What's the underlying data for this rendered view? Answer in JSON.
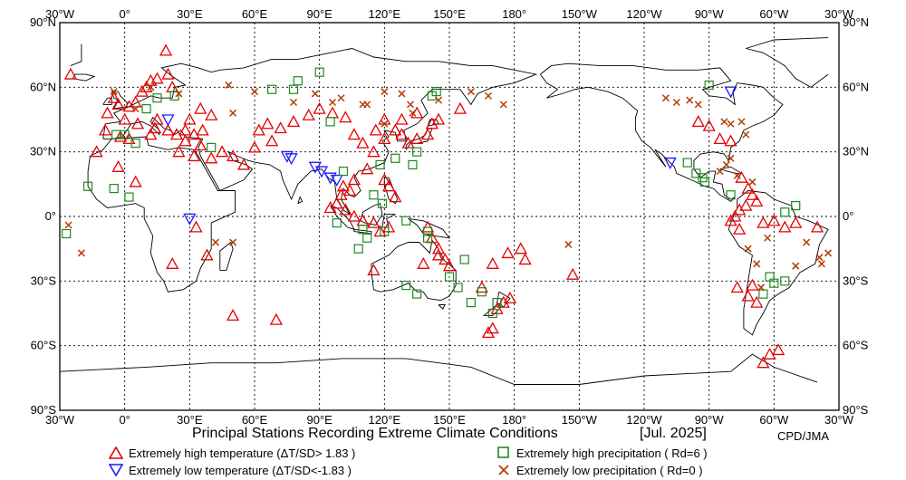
{
  "map": {
    "title": "Principal Stations Recording Extreme Climate Conditions",
    "period": "[Jul. 2025]",
    "credit": "CPD/JMA",
    "projection": "equirectangular, central meridian 150°E",
    "lon_labels": [
      "30°W",
      "0°",
      "30°E",
      "60°E",
      "90°E",
      "120°E",
      "150°E",
      "180°",
      "150°W",
      "120°W",
      "90°W",
      "60°W",
      "30°W"
    ],
    "lat_labels": [
      "90°N",
      "60°N",
      "30°N",
      "0°",
      "30°S",
      "60°S",
      "90°S"
    ],
    "colors": {
      "hot": "#e60000",
      "cold": "#1a1aff",
      "wet": "#1f8a1f",
      "dry": "#b33c00"
    }
  },
  "legend": [
    {
      "kind": "hot",
      "label": "Extremely high temperature (ΔT/SD> 1.83 )"
    },
    {
      "kind": "cold",
      "label": "Extremely low temperature  (ΔT/SD<-1.83 )"
    },
    {
      "kind": "wet",
      "label": "Extremely high precipitation ( Rd=6 )"
    },
    {
      "kind": "dry",
      "label": "Extremely low precipitation ( Rd=0 )"
    }
  ],
  "chart_data": {
    "type": "scatter",
    "x_unit": "longitude (degrees east)",
    "y_unit": "latitude (degrees north)",
    "series": [
      {
        "kind": "hot",
        "points": [
          [
            -13,
            30
          ],
          [
            -9,
            40
          ],
          [
            -8,
            48
          ],
          [
            -5,
            55
          ],
          [
            -3,
            52
          ],
          [
            0,
            45
          ],
          [
            2,
            51
          ],
          [
            5,
            53
          ],
          [
            8,
            58
          ],
          [
            10,
            60
          ],
          [
            12,
            63
          ],
          [
            15,
            64
          ],
          [
            20,
            66
          ],
          [
            22,
            60
          ],
          [
            19,
            77
          ],
          [
            15,
            45
          ],
          [
            14,
            41
          ],
          [
            20,
            40
          ],
          [
            24,
            38
          ],
          [
            28,
            40
          ],
          [
            30,
            45
          ],
          [
            35,
            50
          ],
          [
            40,
            47
          ],
          [
            28,
            35
          ],
          [
            32,
            28
          ],
          [
            40,
            27
          ],
          [
            45,
            30
          ],
          [
            25,
            30
          ],
          [
            12,
            38
          ],
          [
            6,
            43
          ],
          [
            -3,
            23
          ],
          [
            5,
            16
          ],
          [
            -2,
            37
          ],
          [
            2,
            36
          ],
          [
            35,
            33
          ],
          [
            50,
            28
          ],
          [
            55,
            24
          ],
          [
            62,
            40
          ],
          [
            66,
            43
          ],
          [
            72,
            41
          ],
          [
            78,
            44
          ],
          [
            85,
            47
          ],
          [
            90,
            50
          ],
          [
            96,
            48
          ],
          [
            102,
            46
          ],
          [
            106,
            38
          ],
          [
            110,
            34
          ],
          [
            115,
            30
          ],
          [
            120,
            36
          ],
          [
            125,
            40
          ],
          [
            128,
            38
          ],
          [
            131,
            34
          ],
          [
            135,
            36
          ],
          [
            140,
            38
          ],
          [
            142,
            43
          ],
          [
            145,
            45
          ],
          [
            135,
            48
          ],
          [
            128,
            45
          ],
          [
            120,
            45
          ],
          [
            116,
            40
          ],
          [
            112,
            22
          ],
          [
            106,
            17
          ],
          [
            104,
            12
          ],
          [
            101,
            14
          ],
          [
            100,
            10
          ],
          [
            98,
            6
          ],
          [
            95,
            4
          ],
          [
            102,
            3
          ],
          [
            106,
            0
          ],
          [
            110,
            -2
          ],
          [
            115,
            -3
          ],
          [
            118,
            -7
          ],
          [
            122,
            -5
          ],
          [
            125,
            9
          ],
          [
            122,
            14
          ],
          [
            120,
            17
          ],
          [
            140,
            -5
          ],
          [
            142,
            -10
          ],
          [
            145,
            -15
          ],
          [
            150,
            -23
          ],
          [
            148,
            -20
          ],
          [
            145,
            -18
          ],
          [
            138,
            -22
          ],
          [
            115,
            -25
          ],
          [
            155,
            50
          ],
          [
            165,
            -33
          ],
          [
            172,
            -43
          ],
          [
            178,
            -38
          ],
          [
            175,
            -40
          ],
          [
            177,
            -17
          ],
          [
            170,
            -22
          ],
          [
            183,
            -15
          ],
          [
            185,
            -20
          ],
          [
            207,
            -27
          ],
          [
            -95,
            44
          ],
          [
            -90,
            42
          ],
          [
            -85,
            36
          ],
          [
            -80,
            35
          ],
          [
            -75,
            18
          ],
          [
            -72,
            13
          ],
          [
            -70,
            10
          ],
          [
            -68,
            7
          ],
          [
            -73,
            5
          ],
          [
            -76,
            3
          ],
          [
            -78,
            0
          ],
          [
            -80,
            -2
          ],
          [
            -76,
            -6
          ],
          [
            -65,
            -3
          ],
          [
            -60,
            -2
          ],
          [
            -55,
            -5
          ],
          [
            -50,
            -3
          ],
          [
            -40,
            -5
          ],
          [
            -77,
            -33
          ],
          [
            -72,
            -37
          ],
          [
            -70,
            -32
          ],
          [
            -68,
            -40
          ],
          [
            -65,
            -68
          ],
          [
            -62,
            -64
          ],
          [
            -58,
            -62
          ],
          [
            -25,
            66
          ],
          [
            168,
            -54
          ],
          [
            170,
            -52
          ],
          [
            50,
            -46
          ],
          [
            70,
            -48
          ],
          [
            22,
            -22
          ],
          [
            38,
            -18
          ],
          [
            33,
            -5
          ],
          [
            36,
            40
          ],
          [
            32,
            38
          ],
          [
            60,
            32
          ],
          [
            68,
            35
          ]
        ]
      },
      {
        "kind": "cold",
        "points": [
          [
            20,
            45
          ],
          [
            30,
            -1
          ],
          [
            75,
            28
          ],
          [
            77,
            27
          ],
          [
            88,
            23
          ],
          [
            91,
            21
          ],
          [
            95,
            18
          ],
          [
            98,
            17
          ],
          [
            -108,
            25
          ],
          [
            -80,
            58
          ]
        ]
      },
      {
        "kind": "wet",
        "points": [
          [
            -17,
            14
          ],
          [
            -5,
            13
          ],
          [
            2,
            9
          ],
          [
            -27,
            -8
          ],
          [
            10,
            50
          ],
          [
            15,
            55
          ],
          [
            23,
            56
          ],
          [
            0,
            38
          ],
          [
            -4,
            38
          ],
          [
            5,
            34
          ],
          [
            40,
            32
          ],
          [
            68,
            59
          ],
          [
            78,
            59
          ],
          [
            80,
            63
          ],
          [
            90,
            67
          ],
          [
            95,
            44
          ],
          [
            101,
            21
          ],
          [
            118,
            24
          ],
          [
            125,
            27
          ],
          [
            133,
            24
          ],
          [
            135,
            30
          ],
          [
            142,
            56
          ],
          [
            144,
            58
          ],
          [
            120,
            -7
          ],
          [
            119,
            6
          ],
          [
            110,
            -6
          ],
          [
            112,
            -10
          ],
          [
            108,
            -15
          ],
          [
            130,
            -2
          ],
          [
            140,
            -7
          ],
          [
            140,
            -10
          ],
          [
            130,
            -32
          ],
          [
            135,
            -36
          ],
          [
            150,
            -28
          ],
          [
            160,
            -40
          ],
          [
            154,
            -33
          ],
          [
            165,
            -35
          ],
          [
            170,
            -45
          ],
          [
            172,
            -40
          ],
          [
            157,
            -20
          ],
          [
            -90,
            61
          ],
          [
            -100,
            25
          ],
          [
            -96,
            20
          ],
          [
            -92,
            16
          ],
          [
            -93,
            18
          ],
          [
            -80,
            10
          ],
          [
            -65,
            -36
          ],
          [
            -60,
            -31
          ],
          [
            -62,
            -28
          ],
          [
            -55,
            2
          ],
          [
            -50,
            5
          ],
          [
            -55,
            -30
          ],
          [
            98,
            -3
          ],
          [
            115,
            10
          ]
        ]
      },
      {
        "kind": "dry",
        "points": [
          [
            42,
            -12
          ],
          [
            50,
            -12
          ],
          [
            12,
            60
          ],
          [
            -5,
            58
          ],
          [
            5,
            50
          ],
          [
            25,
            57
          ],
          [
            48,
            61
          ],
          [
            60,
            58
          ],
          [
            78,
            53
          ],
          [
            88,
            57
          ],
          [
            96,
            53
          ],
          [
            100,
            55
          ],
          [
            110,
            52
          ],
          [
            120,
            58
          ],
          [
            128,
            57
          ],
          [
            132,
            52
          ],
          [
            145,
            54
          ],
          [
            160,
            58
          ],
          [
            168,
            56
          ],
          [
            175,
            52
          ],
          [
            112,
            52
          ],
          [
            120,
            43
          ],
          [
            133,
            48
          ],
          [
            -110,
            55
          ],
          [
            -105,
            53
          ],
          [
            -99,
            54
          ],
          [
            -95,
            52
          ],
          [
            -83,
            44
          ],
          [
            -80,
            43
          ],
          [
            -75,
            44
          ],
          [
            -73,
            38
          ],
          [
            -82,
            24
          ],
          [
            -77,
            19
          ],
          [
            -80,
            27
          ],
          [
            -85,
            21
          ],
          [
            -70,
            16
          ],
          [
            -63,
            -10
          ],
          [
            -72,
            -15
          ],
          [
            -68,
            -22
          ],
          [
            -66,
            -33
          ],
          [
            -50,
            -23
          ],
          [
            -45,
            -12
          ],
          [
            -35,
            -17
          ],
          [
            -38,
            -22
          ],
          [
            -20,
            -17
          ],
          [
            205,
            -13
          ],
          [
            -26,
            -4
          ],
          [
            -39,
            -19
          ],
          [
            50,
            48
          ]
        ]
      }
    ]
  }
}
